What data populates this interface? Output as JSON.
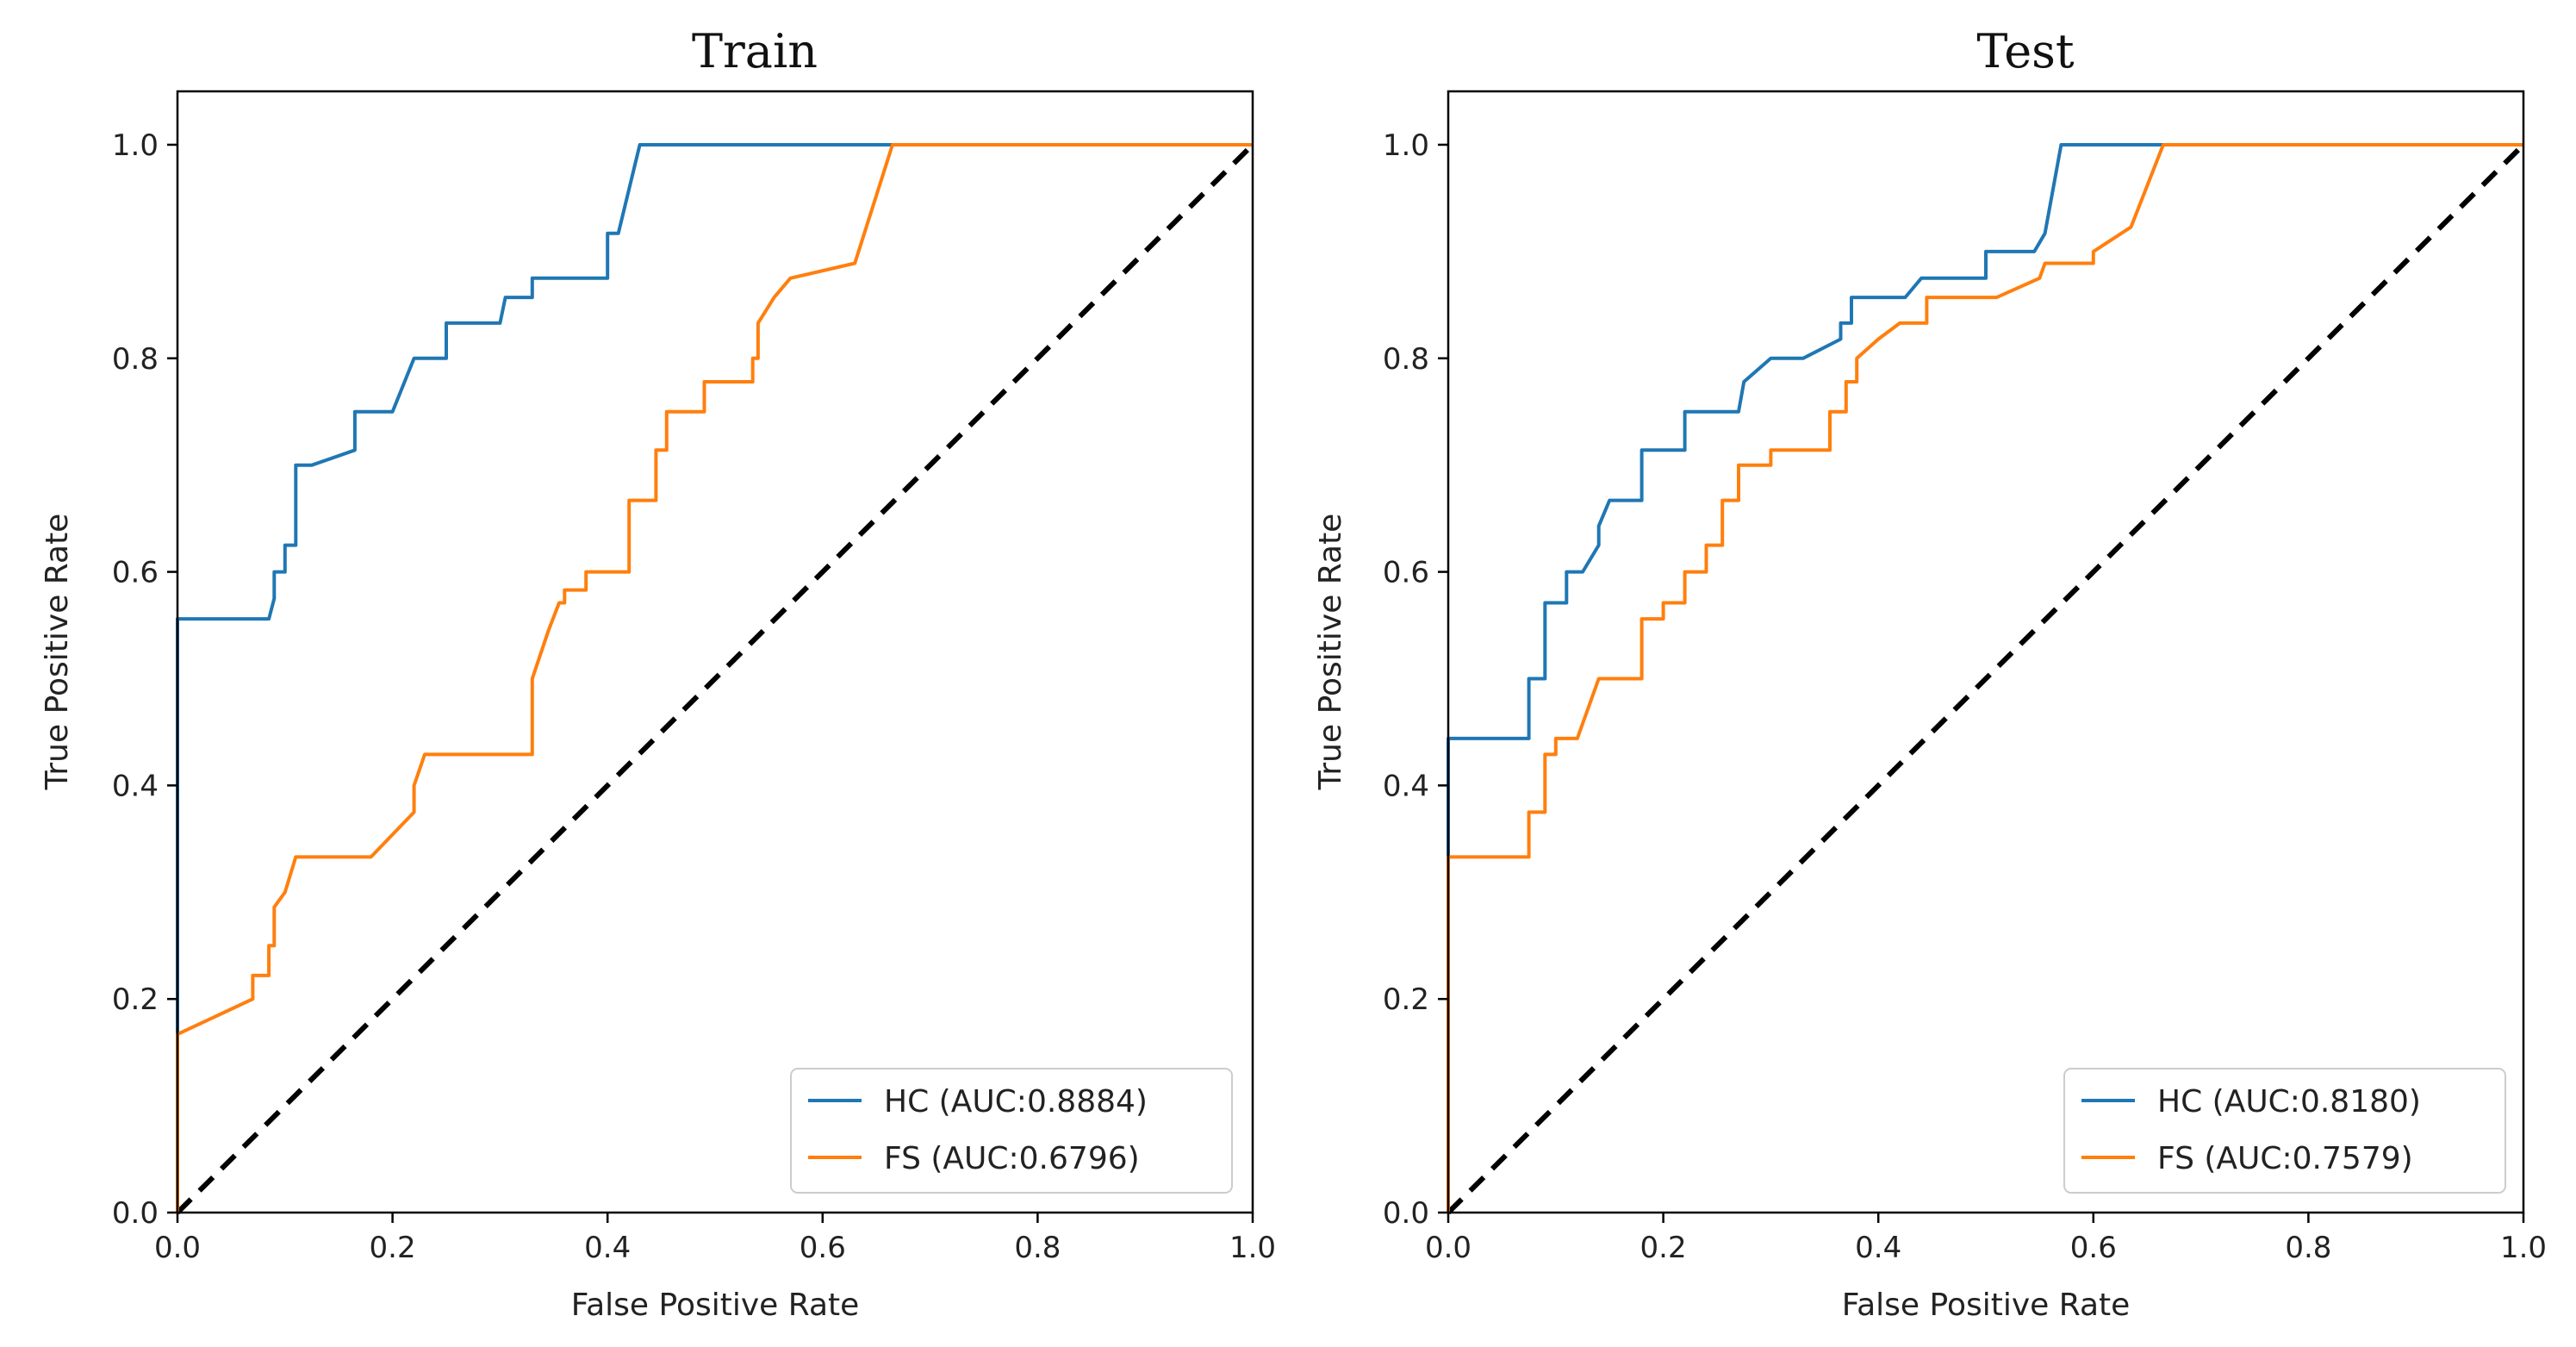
{
  "chart_data": [
    {
      "type": "line",
      "title": "Train",
      "xlabel": "False Positive Rate",
      "ylabel": "True Positive Rate",
      "xlim": [
        0,
        1
      ],
      "ylim": [
        0,
        1.05
      ],
      "xticks": [
        "0.0",
        "0.2",
        "0.4",
        "0.6",
        "0.8",
        "1.0"
      ],
      "yticks": [
        "0.0",
        "0.2",
        "0.4",
        "0.6",
        "0.8",
        "1.0"
      ],
      "legend_position": "lower-right",
      "series": [
        {
          "name": "HC (AUC:0.8884)",
          "color": "#1f77b4",
          "x": [
            0,
            0,
            0.085,
            0.09,
            0.09,
            0.1,
            0.1,
            0.11,
            0.11,
            0.125,
            0.165,
            0.165,
            0.2,
            0.22,
            0.22,
            0.25,
            0.25,
            0.3,
            0.305,
            0.305,
            0.33,
            0.33,
            0.4,
            0.4,
            0.41,
            0.43,
            0.43,
            0.66,
            1.0
          ],
          "y": [
            0,
            0.556,
            0.556,
            0.575,
            0.6,
            0.6,
            0.625,
            0.625,
            0.7,
            0.7,
            0.714,
            0.75,
            0.75,
            0.8,
            0.8,
            0.8,
            0.833,
            0.833,
            0.857,
            0.857,
            0.857,
            0.875,
            0.875,
            0.917,
            0.917,
            1.0,
            1.0,
            1.0,
            1.0
          ]
        },
        {
          "name": "FS (AUC:0.6796)",
          "color": "#ff7f0e",
          "x": [
            0,
            0,
            0.07,
            0.07,
            0.085,
            0.085,
            0.09,
            0.09,
            0.1,
            0.11,
            0.18,
            0.22,
            0.22,
            0.23,
            0.33,
            0.33,
            0.345,
            0.355,
            0.36,
            0.36,
            0.38,
            0.38,
            0.42,
            0.42,
            0.445,
            0.445,
            0.455,
            0.455,
            0.49,
            0.49,
            0.535,
            0.535,
            0.54,
            0.54,
            0.555,
            0.57,
            0.63,
            0.665,
            1.0
          ],
          "y": [
            0,
            0.167,
            0.2,
            0.222,
            0.222,
            0.25,
            0.25,
            0.286,
            0.3,
            0.333,
            0.333,
            0.375,
            0.4,
            0.429,
            0.429,
            0.5,
            0.545,
            0.571,
            0.571,
            0.583,
            0.583,
            0.6,
            0.6,
            0.667,
            0.667,
            0.714,
            0.714,
            0.75,
            0.75,
            0.778,
            0.778,
            0.8,
            0.8,
            0.833,
            0.857,
            0.875,
            0.889,
            1.0,
            1.0
          ]
        }
      ]
    },
    {
      "type": "line",
      "title": "Test",
      "xlabel": "False Positive Rate",
      "ylabel": "True Positive Rate",
      "xlim": [
        0,
        1
      ],
      "ylim": [
        0,
        1.05
      ],
      "xticks": [
        "0.0",
        "0.2",
        "0.4",
        "0.6",
        "0.8",
        "1.0"
      ],
      "yticks": [
        "0.0",
        "0.2",
        "0.4",
        "0.6",
        "0.8",
        "1.0"
      ],
      "legend_position": "lower-right",
      "series": [
        {
          "name": "HC (AUC:0.8180)",
          "color": "#1f77b4",
          "x": [
            0,
            0,
            0.075,
            0.075,
            0.09,
            0.09,
            0.11,
            0.11,
            0.125,
            0.14,
            0.14,
            0.15,
            0.18,
            0.18,
            0.22,
            0.22,
            0.27,
            0.275,
            0.3,
            0.33,
            0.365,
            0.365,
            0.375,
            0.375,
            0.425,
            0.44,
            0.44,
            0.5,
            0.5,
            0.545,
            0.555,
            0.57,
            0.66,
            1.0
          ],
          "y": [
            0,
            0.444,
            0.444,
            0.5,
            0.5,
            0.571,
            0.571,
            0.6,
            0.6,
            0.625,
            0.643,
            0.667,
            0.667,
            0.714,
            0.714,
            0.75,
            0.75,
            0.778,
            0.8,
            0.8,
            0.818,
            0.833,
            0.833,
            0.857,
            0.857,
            0.875,
            0.875,
            0.875,
            0.9,
            0.9,
            0.917,
            1.0,
            1.0,
            1.0
          ]
        },
        {
          "name": "FS (AUC:0.7579)",
          "color": "#ff7f0e",
          "x": [
            0,
            0,
            0.075,
            0.075,
            0.09,
            0.09,
            0.1,
            0.1,
            0.12,
            0.14,
            0.18,
            0.18,
            0.2,
            0.2,
            0.22,
            0.22,
            0.24,
            0.24,
            0.255,
            0.255,
            0.27,
            0.27,
            0.3,
            0.3,
            0.31,
            0.355,
            0.355,
            0.37,
            0.37,
            0.38,
            0.38,
            0.4,
            0.42,
            0.445,
            0.445,
            0.455,
            0.455,
            0.51,
            0.55,
            0.555,
            0.6,
            0.6,
            0.635,
            0.665,
            1.0
          ],
          "y": [
            0,
            0.333,
            0.333,
            0.375,
            0.375,
            0.429,
            0.429,
            0.444,
            0.444,
            0.5,
            0.5,
            0.556,
            0.556,
            0.571,
            0.571,
            0.6,
            0.6,
            0.625,
            0.625,
            0.667,
            0.667,
            0.7,
            0.7,
            0.714,
            0.714,
            0.714,
            0.75,
            0.75,
            0.778,
            0.778,
            0.8,
            0.818,
            0.833,
            0.833,
            0.857,
            0.857,
            0.857,
            0.857,
            0.875,
            0.889,
            0.889,
            0.9,
            0.923,
            1.0,
            1.0
          ]
        }
      ]
    }
  ]
}
